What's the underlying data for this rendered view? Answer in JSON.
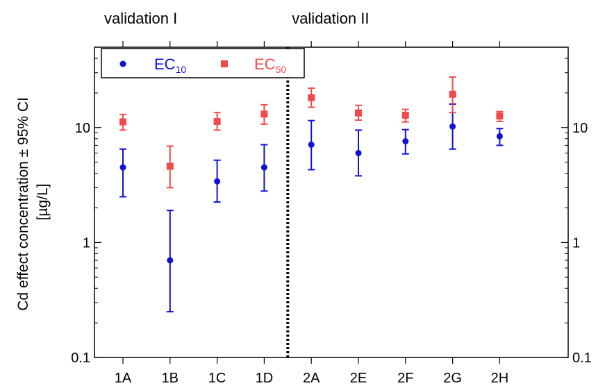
{
  "chart_data": {
    "type": "scatter",
    "ylabel_line1": "Cd effect concentration ± 95% CI",
    "ylabel_line2": "[µg/L]",
    "yscale": "log",
    "ylim": [
      0.1,
      50
    ],
    "yticks": [
      {
        "value": 0.1,
        "label": "0.1"
      },
      {
        "value": 1,
        "label": "1"
      },
      {
        "value": 10,
        "label": "10"
      }
    ],
    "categories": [
      "1A",
      "1B",
      "1C",
      "1D",
      "2A",
      "2E",
      "2F",
      "2G",
      "2H"
    ],
    "groups": [
      {
        "label": "validation I",
        "categories": [
          "1A",
          "1B",
          "1C",
          "1D"
        ]
      },
      {
        "label": "validation II",
        "categories": [
          "2A",
          "2E",
          "2F",
          "2G",
          "2H"
        ]
      }
    ],
    "divider_after": "1D",
    "legend": {
      "placement": "top-left",
      "boxed": true
    },
    "series": [
      {
        "name_main": "EC",
        "name_sub": "10",
        "color": "#1010d8",
        "marker": "circle",
        "values": [
          4.5,
          0.7,
          3.4,
          4.5,
          7.1,
          6.0,
          7.6,
          10.2,
          8.4
        ],
        "ci_low": [
          2.5,
          0.25,
          2.25,
          2.8,
          4.3,
          3.8,
          5.9,
          6.5,
          7.0
        ],
        "ci_high": [
          6.5,
          1.9,
          5.2,
          7.1,
          11.5,
          9.5,
          9.6,
          16.0,
          9.8
        ]
      },
      {
        "name_main": "EC",
        "name_sub": "50",
        "color": "#f04a4a",
        "marker": "square",
        "values": [
          11.2,
          4.6,
          11.3,
          13.1,
          18.2,
          13.4,
          12.8,
          19.5,
          12.6
        ],
        "ci_low": [
          9.5,
          3.0,
          9.5,
          10.7,
          15.0,
          11.6,
          11.2,
          13.5,
          11.3
        ],
        "ci_high": [
          13.0,
          6.9,
          13.5,
          15.8,
          22.0,
          15.6,
          14.4,
          27.5,
          13.8
        ]
      }
    ]
  }
}
